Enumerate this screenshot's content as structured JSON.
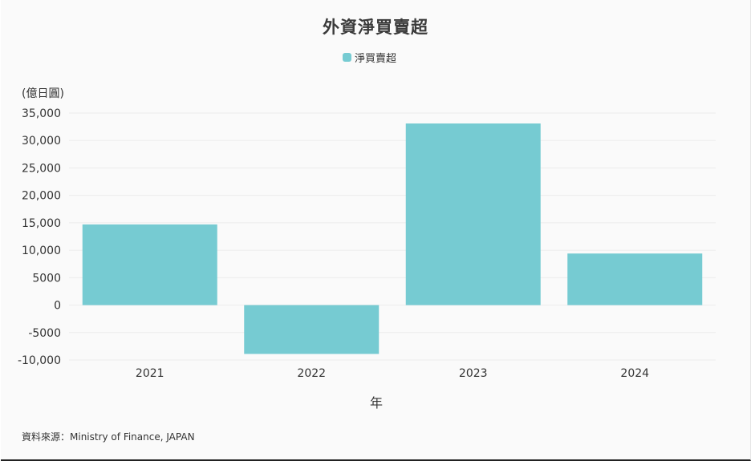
{
  "page": {
    "source_text": "資料來源：Ministry of Finance, JAPAN"
  },
  "chart_data": {
    "type": "bar",
    "title": "外資淨買賣超",
    "ylabel": "(億日圓)",
    "xlabel": "年",
    "categories": [
      "2021",
      "2022",
      "2023",
      "2024"
    ],
    "series": [
      {
        "name": "淨買賣超",
        "values": [
          14700,
          -8900,
          33100,
          9400
        ],
        "color": "#76cbd2"
      }
    ],
    "ylim": [
      -10000,
      35000
    ],
    "yticks": [
      {
        "value": 35000,
        "label": "35,000"
      },
      {
        "value": 30000,
        "label": "30,000"
      },
      {
        "value": 25000,
        "label": "25,000"
      },
      {
        "value": 20000,
        "label": "20,000"
      },
      {
        "value": 15000,
        "label": "15,000"
      },
      {
        "value": 10000,
        "label": "10,000"
      },
      {
        "value": 5000,
        "label": "5000"
      },
      {
        "value": 0,
        "label": "0"
      },
      {
        "value": -5000,
        "label": "-5000"
      },
      {
        "value": -10000,
        "label": "-10,000"
      }
    ],
    "grid": true,
    "legend_position": "top-center"
  }
}
